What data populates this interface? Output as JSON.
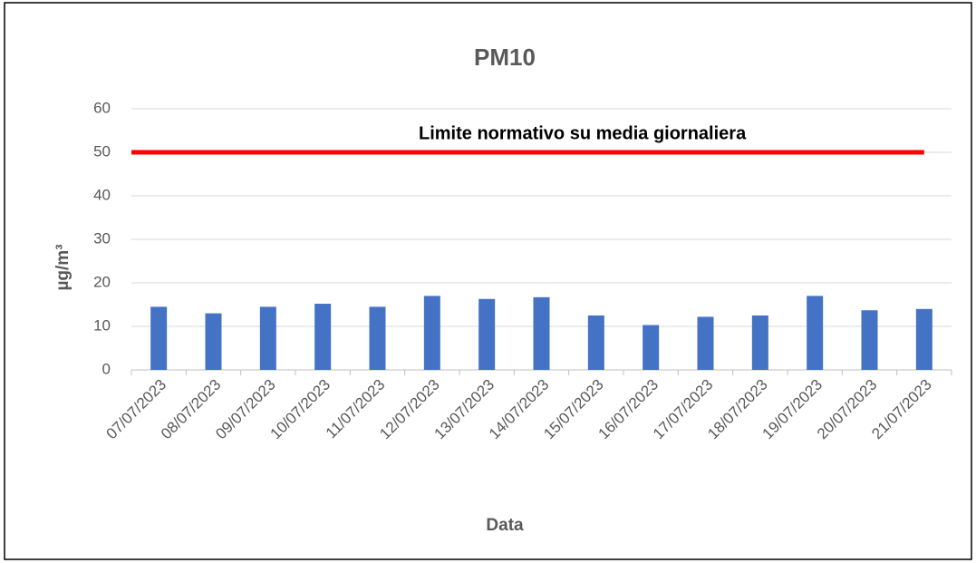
{
  "chart_data": {
    "type": "bar",
    "title": "PM10",
    "x_label": "Data",
    "y_label": "µg/m³",
    "categories": [
      "07/07/2023",
      "08/07/2023",
      "09/07/2023",
      "10/07/2023",
      "11/07/2023",
      "12/07/2023",
      "13/07/2023",
      "14/07/2023",
      "15/07/2023",
      "16/07/2023",
      "17/07/2023",
      "18/07/2023",
      "19/07/2023",
      "20/07/2023",
      "21/07/2023"
    ],
    "values": [
      14.5,
      13,
      14.5,
      15.2,
      14.5,
      17,
      16.3,
      16.7,
      12.5,
      10.3,
      12.2,
      12.5,
      17,
      13.7,
      14
    ],
    "color": "#4472c4",
    "limit": {
      "value": 50,
      "label": "Limite normativo su media giornaliera",
      "color": "#ff0000"
    },
    "ylim": [
      0,
      60
    ],
    "yticks": [
      0,
      10,
      20,
      30,
      40,
      50,
      60
    ],
    "grid": true
  }
}
